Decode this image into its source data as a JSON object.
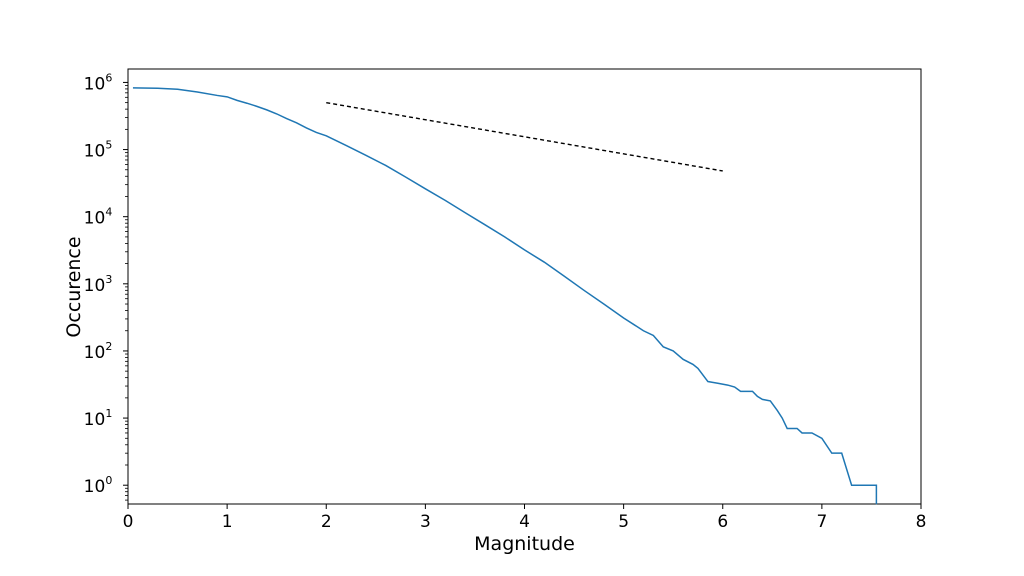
{
  "chart_data": {
    "type": "line",
    "xlabel": "Magnitude",
    "ylabel": "Occurence",
    "xlim": [
      0,
      8
    ],
    "ylim_log10": [
      -0.28,
      6.2
    ],
    "y_scale": "log",
    "grid": false,
    "x_ticks": [
      "0",
      "1",
      "2",
      "3",
      "4",
      "5",
      "6",
      "7",
      "8"
    ],
    "y_ticks": [
      {
        "base": "10",
        "exp": "0"
      },
      {
        "base": "10",
        "exp": "1"
      },
      {
        "base": "10",
        "exp": "2"
      },
      {
        "base": "10",
        "exp": "3"
      },
      {
        "base": "10",
        "exp": "4"
      },
      {
        "base": "10",
        "exp": "5"
      },
      {
        "base": "10",
        "exp": "6"
      }
    ],
    "series": [
      {
        "color": "#1f77b4",
        "style": "solid",
        "points": [
          [
            0.05,
            830000
          ],
          [
            0.3,
            820000
          ],
          [
            0.5,
            790000
          ],
          [
            0.7,
            720000
          ],
          [
            0.9,
            640000
          ],
          [
            1.0,
            610000
          ],
          [
            1.1,
            540000
          ],
          [
            1.2,
            490000
          ],
          [
            1.3,
            440000
          ],
          [
            1.4,
            390000
          ],
          [
            1.5,
            340000
          ],
          [
            1.6,
            290000
          ],
          [
            1.7,
            250000
          ],
          [
            1.8,
            210000
          ],
          [
            1.9,
            180000
          ],
          [
            2.0,
            160000
          ],
          [
            2.2,
            115000
          ],
          [
            2.4,
            82000
          ],
          [
            2.6,
            58000
          ],
          [
            2.8,
            39000
          ],
          [
            3.0,
            26000
          ],
          [
            3.2,
            17500
          ],
          [
            3.4,
            11500
          ],
          [
            3.6,
            7600
          ],
          [
            3.8,
            5000
          ],
          [
            4.0,
            3200
          ],
          [
            4.2,
            2100
          ],
          [
            4.4,
            1300
          ],
          [
            4.6,
            800
          ],
          [
            4.8,
            500
          ],
          [
            5.0,
            310
          ],
          [
            5.2,
            200
          ],
          [
            5.3,
            170
          ],
          [
            5.4,
            115
          ],
          [
            5.5,
            100
          ],
          [
            5.6,
            75
          ],
          [
            5.7,
            63
          ],
          [
            5.75,
            55
          ],
          [
            5.85,
            35
          ],
          [
            5.95,
            33
          ],
          [
            6.05,
            31
          ],
          [
            6.12,
            29
          ],
          [
            6.18,
            25
          ],
          [
            6.3,
            25
          ],
          [
            6.35,
            21
          ],
          [
            6.4,
            19
          ],
          [
            6.48,
            18
          ],
          [
            6.55,
            13
          ],
          [
            6.6,
            10
          ],
          [
            6.65,
            7
          ],
          [
            6.75,
            7
          ],
          [
            6.8,
            6
          ],
          [
            6.9,
            6
          ],
          [
            7.0,
            5
          ],
          [
            7.1,
            3
          ],
          [
            7.2,
            3
          ],
          [
            7.3,
            1
          ],
          [
            7.55,
            1
          ],
          [
            7.55,
            0.52
          ]
        ]
      },
      {
        "color": "#000000",
        "style": "dashed",
        "points": [
          [
            2.0,
            500000
          ],
          [
            6.0,
            48000
          ]
        ]
      }
    ]
  }
}
